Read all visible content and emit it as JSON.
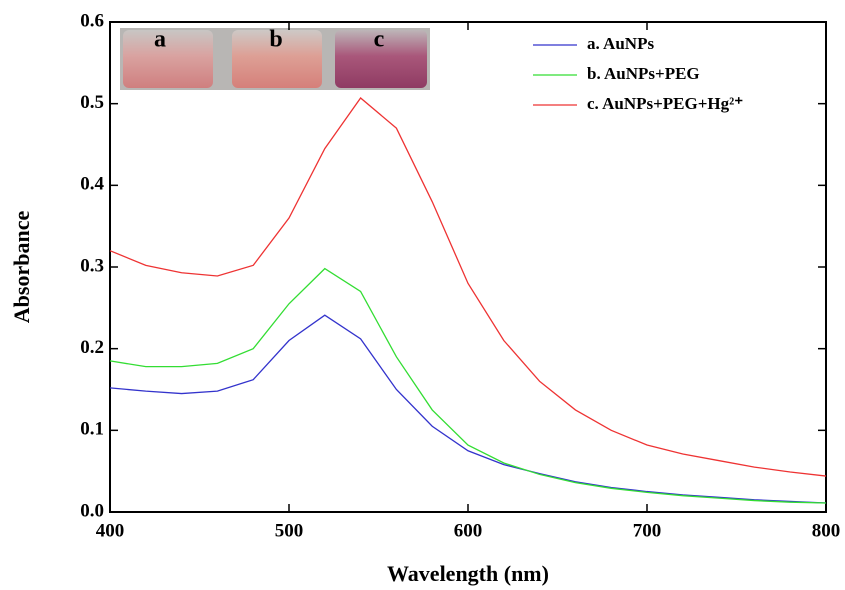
{
  "chart_data": {
    "type": "line",
    "xlabel": "Wavelength (nm)",
    "ylabel": "Absorbance",
    "annotations": [
      "a",
      "b",
      "c"
    ],
    "x": [
      400,
      420,
      440,
      460,
      480,
      500,
      520,
      540,
      560,
      580,
      600,
      620,
      640,
      660,
      680,
      700,
      720,
      740,
      760,
      780,
      800
    ],
    "series": [
      {
        "name": "a. AuNPs",
        "color": "#3333cc",
        "values": [
          0.152,
          0.148,
          0.145,
          0.148,
          0.162,
          0.21,
          0.241,
          0.212,
          0.15,
          0.105,
          0.075,
          0.058,
          0.047,
          0.037,
          0.03,
          0.025,
          0.021,
          0.018,
          0.015,
          0.013,
          0.011
        ]
      },
      {
        "name": "b. AuNPs+PEG",
        "color": "#33dd33",
        "values": [
          0.185,
          0.178,
          0.178,
          0.182,
          0.2,
          0.255,
          0.298,
          0.27,
          0.19,
          0.125,
          0.082,
          0.06,
          0.046,
          0.036,
          0.029,
          0.024,
          0.02,
          0.017,
          0.014,
          0.012,
          0.011
        ]
      },
      {
        "name": "c. AuNPs+PEG+Hg²⁺",
        "color": "#ee3333",
        "values": [
          0.32,
          0.302,
          0.293,
          0.289,
          0.302,
          0.36,
          0.445,
          0.507,
          0.47,
          0.38,
          0.28,
          0.21,
          0.16,
          0.125,
          0.1,
          0.082,
          0.071,
          0.063,
          0.055,
          0.049,
          0.044
        ]
      }
    ],
    "xlim": [
      400,
      800
    ],
    "xticks": [
      400,
      500,
      600,
      700,
      800
    ],
    "ylim": [
      0,
      0.6
    ],
    "yticks": [
      {
        "value": 0,
        "label": "0.0"
      },
      0.1,
      0.2,
      0.3,
      0.4,
      0.5,
      0.6
    ],
    "grid": false,
    "legend": "top-right"
  }
}
